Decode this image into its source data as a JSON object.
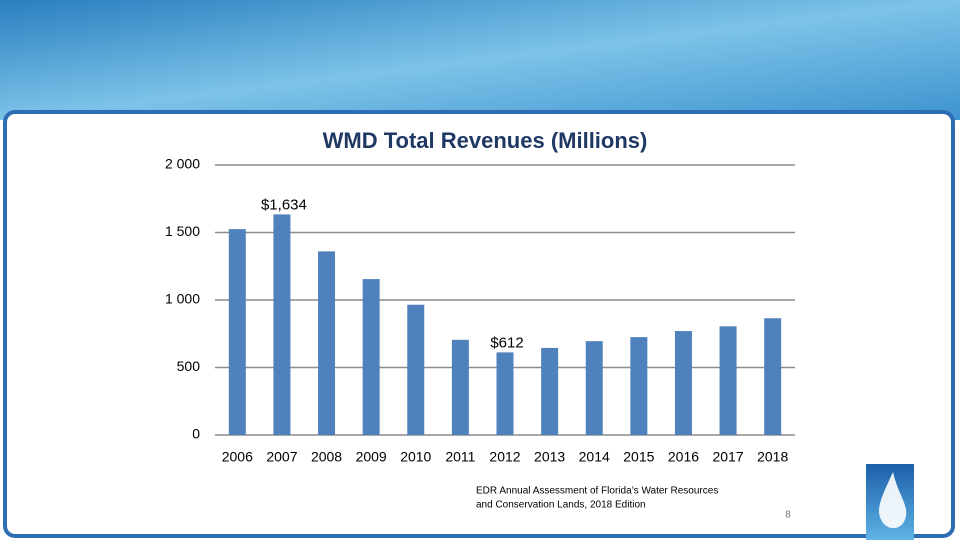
{
  "chart_data": {
    "type": "bar",
    "title": "WMD Total Revenues (Millions)",
    "categories": [
      "2006",
      "2007",
      "2008",
      "2009",
      "2010",
      "2011",
      "2012",
      "2013",
      "2014",
      "2015",
      "2016",
      "2017",
      "2018"
    ],
    "values": [
      1525,
      1634,
      1360,
      1155,
      965,
      705,
      612,
      645,
      695,
      725,
      770,
      805,
      865
    ],
    "value_labels": [
      null,
      "$1,634",
      null,
      null,
      null,
      null,
      "$612",
      null,
      null,
      null,
      null,
      null,
      null
    ],
    "color": "#4f81bd",
    "ylim": [
      0,
      2000
    ],
    "yticks": [
      0,
      500,
      {
        "value": 1000,
        "label": "1 000"
      },
      {
        "value": 1500,
        "label": "1 500"
      },
      {
        "value": 2000,
        "label": "2 000"
      }
    ],
    "grid": true
  },
  "slide": {
    "source_lines": [
      "EDR Annual Assessment of Florida’s Water Resources",
      "and Conservation Lands, 2018 Edition"
    ],
    "page_number": "8"
  }
}
